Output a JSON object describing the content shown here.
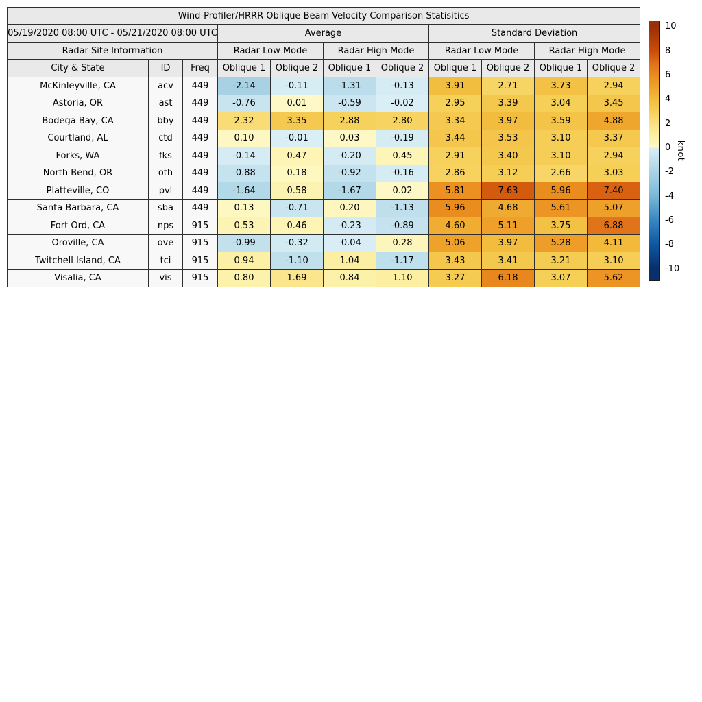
{
  "title": "Wind-Profiler/HRRR Oblique Beam Velocity Comparison Statisitics",
  "chart_data": {
    "type": "heatmap-table",
    "title": "Wind-Profiler/HRRR Oblique Beam Velocity Comparison Statisitics",
    "period": "05/19/2020 08:00 UTC - 05/21/2020 08:00 UTC",
    "group_headers": [
      "Average",
      "Standard Deviation"
    ],
    "site_info_header": "Radar Site Information",
    "mode_headers": [
      "Radar Low Mode",
      "Radar High Mode",
      "Radar Low Mode",
      "Radar High Mode"
    ],
    "columns": {
      "city": "City & State",
      "id": "ID",
      "freq": "Freq",
      "oblique": [
        "Oblique 1",
        "Oblique 2",
        "Oblique 1",
        "Oblique 2",
        "Oblique 1",
        "Oblique 2",
        "Oblique 1",
        "Oblique 2"
      ]
    },
    "rows": [
      {
        "city": "McKinleyville, CA",
        "id": "acv",
        "freq": "449",
        "values": [
          "-2.14",
          "-0.11",
          "-1.31",
          "-0.13",
          "3.91",
          "2.71",
          "3.73",
          "2.94"
        ]
      },
      {
        "city": "Astoria, OR",
        "id": "ast",
        "freq": "449",
        "values": [
          "-0.76",
          "0.01",
          "-0.59",
          "-0.02",
          "2.95",
          "3.39",
          "3.04",
          "3.45"
        ]
      },
      {
        "city": "Bodega Bay, CA",
        "id": "bby",
        "freq": "449",
        "values": [
          "2.32",
          "3.35",
          "2.88",
          "2.80",
          "3.34",
          "3.97",
          "3.59",
          "4.88"
        ]
      },
      {
        "city": "Courtland, AL",
        "id": "ctd",
        "freq": "449",
        "values": [
          "0.10",
          "-0.01",
          "0.03",
          "-0.19",
          "3.44",
          "3.53",
          "3.10",
          "3.37"
        ]
      },
      {
        "city": "Forks, WA",
        "id": "fks",
        "freq": "449",
        "values": [
          "-0.14",
          "0.47",
          "-0.20",
          "0.45",
          "2.91",
          "3.40",
          "3.10",
          "2.94"
        ]
      },
      {
        "city": "North Bend, OR",
        "id": "oth",
        "freq": "449",
        "values": [
          "-0.88",
          "0.18",
          "-0.92",
          "-0.16",
          "2.86",
          "3.12",
          "2.66",
          "3.03"
        ]
      },
      {
        "city": "Platteville, CO",
        "id": "pvl",
        "freq": "449",
        "values": [
          "-1.64",
          "0.58",
          "-1.67",
          "0.02",
          "5.81",
          "7.63",
          "5.96",
          "7.40"
        ]
      },
      {
        "city": "Santa Barbara, CA",
        "id": "sba",
        "freq": "449",
        "values": [
          "0.13",
          "-0.71",
          "0.20",
          "-1.13",
          "5.96",
          "4.68",
          "5.61",
          "5.07"
        ]
      },
      {
        "city": "Fort Ord, CA",
        "id": "nps",
        "freq": "915",
        "values": [
          "0.53",
          "0.46",
          "-0.23",
          "-0.89",
          "4.60",
          "5.11",
          "3.75",
          "6.88"
        ]
      },
      {
        "city": "Oroville, CA",
        "id": "ove",
        "freq": "915",
        "values": [
          "-0.99",
          "-0.32",
          "-0.04",
          "0.28",
          "5.06",
          "3.97",
          "5.28",
          "4.11"
        ]
      },
      {
        "city": "Twitchell Island, CA",
        "id": "tci",
        "freq": "915",
        "values": [
          "0.94",
          "-1.10",
          "1.04",
          "-1.17",
          "3.43",
          "3.41",
          "3.21",
          "3.10"
        ]
      },
      {
        "city": "Visalia, CA",
        "id": "vis",
        "freq": "915",
        "values": [
          "0.80",
          "1.69",
          "0.84",
          "1.10",
          "3.27",
          "6.18",
          "3.07",
          "5.62"
        ]
      }
    ],
    "colorbar": {
      "unit": "knot",
      "tick_labels": [
        "10",
        "8",
        "6",
        "4",
        "2",
        "0",
        "-2",
        "-4",
        "-6",
        "-8",
        "-10"
      ],
      "vmin": -10,
      "vmax": 10,
      "colormap_anchors": {
        "negative": [
          [
            -10,
            "#08306b"
          ],
          [
            -8,
            "#0e58a2"
          ],
          [
            -6,
            "#3787c0"
          ],
          [
            -4,
            "#7ab8d9"
          ],
          [
            -2,
            "#abd4e5"
          ],
          [
            0,
            "#d9eef5"
          ]
        ],
        "positive": [
          [
            0,
            "#fdf8c6"
          ],
          [
            1,
            "#fcf0a4"
          ],
          [
            2,
            "#fae183"
          ],
          [
            3,
            "#f6d058"
          ],
          [
            4,
            "#f2bc3d"
          ],
          [
            5,
            "#eea32b"
          ],
          [
            6,
            "#ea8c1f"
          ],
          [
            7,
            "#e0701a"
          ],
          [
            8,
            "#cb4e07"
          ],
          [
            10,
            "#9a3008"
          ]
        ]
      }
    }
  }
}
